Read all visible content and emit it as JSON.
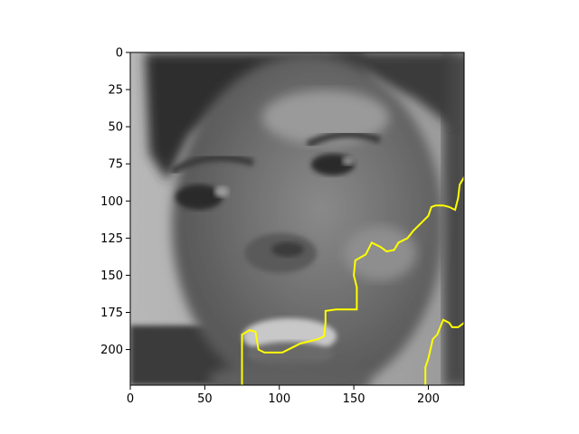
{
  "chart_data": {
    "type": "image",
    "title": "",
    "xlabel": "",
    "ylabel": "",
    "xlim": [
      0,
      224
    ],
    "ylim": [
      224,
      0
    ],
    "x_ticks": [
      0,
      50,
      100,
      150,
      200
    ],
    "y_ticks": [
      0,
      25,
      50,
      75,
      100,
      125,
      150,
      175,
      200
    ],
    "colormap": "gray",
    "overlay_color": "#ffff00",
    "overlay_contours": [
      {
        "points": [
          [
            75,
            224
          ],
          [
            75,
            190
          ],
          [
            80,
            187
          ],
          [
            84,
            188
          ],
          [
            86,
            200
          ],
          [
            90,
            202
          ],
          [
            102,
            202
          ],
          [
            110,
            198
          ],
          [
            114,
            196
          ],
          [
            126,
            193
          ],
          [
            130,
            191
          ],
          [
            131,
            182
          ],
          [
            131,
            174
          ],
          [
            138,
            173
          ],
          [
            146,
            173
          ],
          [
            152,
            173
          ],
          [
            152,
            158
          ],
          [
            150,
            150
          ],
          [
            151,
            140
          ],
          [
            158,
            136
          ],
          [
            162,
            128
          ],
          [
            168,
            131
          ],
          [
            172,
            134
          ],
          [
            177,
            133
          ],
          [
            180,
            128
          ],
          [
            186,
            125
          ],
          [
            190,
            120
          ],
          [
            196,
            114
          ],
          [
            200,
            110
          ],
          [
            202,
            104
          ],
          [
            205,
            103
          ],
          [
            210,
            103
          ],
          [
            214,
            104
          ],
          [
            218,
            106
          ],
          [
            220,
            98
          ],
          [
            221,
            89
          ],
          [
            224,
            84
          ],
          [
            230,
            84
          ]
        ]
      },
      {
        "points": [
          [
            198,
            224
          ],
          [
            198,
            212
          ],
          [
            200,
            206
          ],
          [
            203,
            193
          ],
          [
            206,
            190
          ],
          [
            208,
            185
          ],
          [
            210,
            180
          ],
          [
            214,
            182
          ],
          [
            216,
            185
          ],
          [
            220,
            185
          ],
          [
            224,
            182
          ],
          [
            225,
            178
          ]
        ]
      }
    ]
  }
}
